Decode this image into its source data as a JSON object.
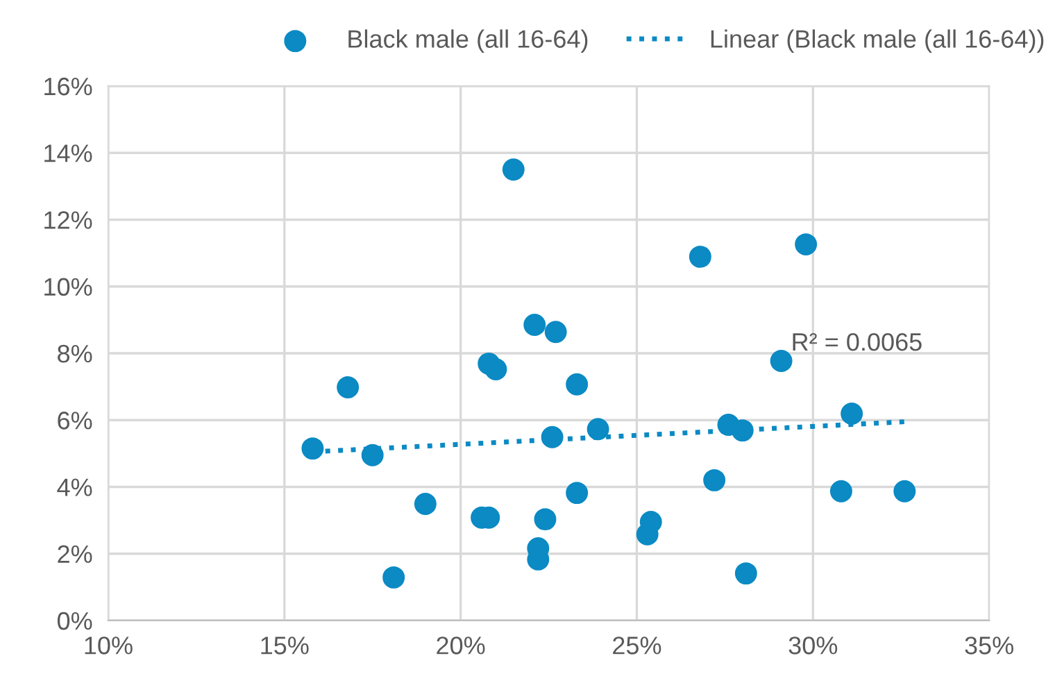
{
  "chart_data": {
    "type": "scatter",
    "xlim": [
      10,
      35
    ],
    "xticks": [
      {
        "value": 10,
        "label": "10%"
      },
      {
        "value": 15,
        "label": "15%"
      },
      {
        "value": 20,
        "label": "20%"
      },
      {
        "value": 25,
        "label": "25%"
      },
      {
        "value": 30,
        "label": "30%"
      },
      {
        "value": 35,
        "label": "35%"
      }
    ],
    "ylim": [
      0,
      16
    ],
    "yticks": [
      {
        "value": 0,
        "label": "0%"
      },
      {
        "value": 2,
        "label": "2%"
      },
      {
        "value": 4,
        "label": "4%"
      },
      {
        "value": 6,
        "label": "6%"
      },
      {
        "value": 8,
        "label": "8%"
      },
      {
        "value": 10,
        "label": "10%"
      },
      {
        "value": 12,
        "label": "12%"
      },
      {
        "value": 14,
        "label": "14%"
      },
      {
        "value": 16,
        "label": "16%"
      }
    ],
    "grid": true,
    "legend": "top",
    "annotations": [
      "R² = 0.0065"
    ],
    "series": [
      {
        "name": "Black male (all 16-64)",
        "marker": "circle",
        "color": "#0b8ac4",
        "x": [
          15.8,
          16.8,
          17.5,
          18.1,
          19.0,
          20.6,
          20.8,
          20.8,
          21.0,
          21.5,
          22.1,
          22.2,
          22.2,
          22.4,
          22.6,
          22.7,
          23.3,
          23.3,
          23.9,
          26.8,
          29.8,
          29.1,
          31.1,
          27.6,
          28.0,
          27.2,
          30.8,
          32.6,
          25.4,
          25.3,
          28.1
        ],
        "values": [
          5.15,
          6.98,
          4.95,
          1.29,
          3.49,
          3.08,
          3.08,
          7.69,
          7.52,
          13.5,
          8.85,
          1.83,
          2.16,
          3.03,
          5.49,
          8.64,
          7.07,
          3.82,
          5.73,
          10.89,
          11.26,
          7.77,
          6.19,
          5.86,
          5.69,
          4.2,
          3.87,
          3.87,
          2.95,
          2.58,
          1.41
        ]
      },
      {
        "name": "Linear (Black male (all 16-64))",
        "type": "line",
        "marker": "none",
        "line_style": "dotted",
        "color": "#0b8ac4",
        "x": [
          15.8,
          32.6
        ],
        "values": [
          5.05,
          5.95
        ]
      }
    ]
  }
}
